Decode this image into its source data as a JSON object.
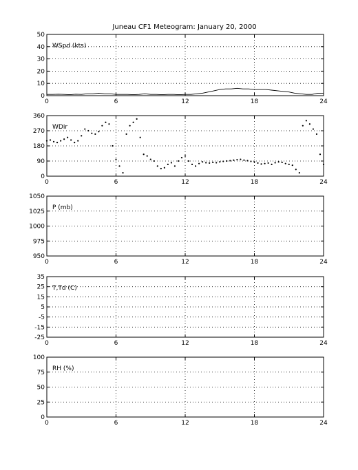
{
  "chart_data": {
    "type": "line",
    "title": "Juneau CF1 Meteogram:   January 20, 2000",
    "panels": [
      {
        "label": "WSpd (kts)",
        "xlim": [
          0,
          24
        ],
        "xticks": [
          0,
          6,
          12,
          18,
          24
        ],
        "ylim": [
          0,
          50
        ],
        "yticks": [
          0,
          10,
          20,
          30,
          40,
          50
        ],
        "grid": true,
        "style": "line",
        "series": [
          {
            "x": [
              0,
              0.5,
              1,
              1.5,
              2,
              2.5,
              3,
              3.5,
              4,
              4.5,
              5,
              5.5,
              6,
              6.5,
              7,
              7.5,
              8,
              8.5,
              9,
              9.5,
              10,
              10.5,
              11,
              11.5,
              12,
              12.5,
              13,
              13.5,
              14,
              14.5,
              15,
              15.5,
              16,
              16.5,
              17,
              17.5,
              18,
              18.5,
              19,
              19.5,
              20,
              20.5,
              21,
              21.5,
              22,
              22.5,
              23,
              23.5,
              24
            ],
            "values": [
              1,
              1,
              1.2,
              1,
              0.8,
              1.2,
              1,
              1.5,
              1.5,
              2,
              1.5,
              1.5,
              1,
              1,
              1,
              0.8,
              1,
              1.5,
              1,
              1,
              0.8,
              1,
              1,
              0.8,
              1,
              1,
              1.5,
              2,
              3,
              4,
              5,
              5.5,
              5.5,
              6,
              5.5,
              5.5,
              5,
              5,
              5,
              4.5,
              4,
              3.5,
              3,
              2,
              1.5,
              1,
              1,
              2,
              2
            ]
          }
        ]
      },
      {
        "label": "WDir",
        "xlim": [
          0,
          24
        ],
        "xticks": [
          0,
          6,
          12,
          18,
          24
        ],
        "ylim": [
          0,
          360
        ],
        "yticks": [
          0,
          90,
          180,
          270,
          360
        ],
        "grid": true,
        "style": "dots",
        "series": [
          {
            "x": [
              0,
              0.3,
              0.6,
              0.9,
              1.2,
              1.5,
              1.8,
              2.1,
              2.4,
              2.7,
              3.0,
              3.3,
              3.6,
              3.9,
              4.2,
              4.5,
              4.8,
              5.1,
              5.4,
              5.7,
              6.0,
              6.3,
              6.6,
              6.9,
              7.2,
              7.5,
              7.8,
              8.1,
              8.4,
              8.7,
              9.0,
              9.3,
              9.6,
              9.9,
              10.2,
              10.5,
              10.8,
              11.1,
              11.4,
              11.7,
              12.0,
              12.3,
              12.6,
              12.9,
              13.2,
              13.5,
              13.8,
              14.1,
              14.4,
              14.7,
              15.0,
              15.3,
              15.6,
              15.9,
              16.2,
              16.5,
              16.8,
              17.1,
              17.4,
              17.7,
              18.0,
              18.3,
              18.6,
              18.9,
              19.2,
              19.5,
              19.8,
              20.1,
              20.4,
              20.7,
              21.0,
              21.3,
              21.6,
              21.9,
              22.2,
              22.5,
              22.8,
              23.1,
              23.4,
              23.7,
              24
            ],
            "values": [
              210,
              215,
              205,
              200,
              210,
              220,
              230,
              215,
              200,
              210,
              240,
              280,
              270,
              255,
              250,
              265,
              300,
              320,
              310,
              180,
              100,
              60,
              20,
              250,
              300,
              320,
              340,
              230,
              130,
              120,
              100,
              90,
              60,
              45,
              50,
              70,
              80,
              60,
              90,
              110,
              120,
              90,
              70,
              60,
              75,
              85,
              80,
              78,
              82,
              80,
              85,
              88,
              90,
              92,
              95,
              98,
              100,
              95,
              92,
              88,
              85,
              78,
              72,
              75,
              78,
              70,
              80,
              85,
              82,
              75,
              70,
              65,
              40,
              20,
              300,
              330,
              310,
              280,
              250,
              130,
              70
            ]
          }
        ]
      },
      {
        "label": "P (mb)",
        "xlim": [
          0,
          24
        ],
        "xticks": [
          0,
          6,
          12,
          18,
          24
        ],
        "ylim": [
          950,
          1050
        ],
        "yticks": [
          950,
          975,
          1000,
          1025,
          1050
        ],
        "grid": true,
        "style": "line",
        "series": []
      },
      {
        "label": "T,Td (C)",
        "xlim": [
          0,
          24
        ],
        "xticks": [
          0,
          6,
          12,
          18,
          24
        ],
        "ylim": [
          -25,
          35
        ],
        "yticks": [
          -25,
          -15,
          -5,
          5,
          15,
          25,
          35
        ],
        "grid": true,
        "style": "line",
        "series": []
      },
      {
        "label": "RH (%)",
        "xlim": [
          0,
          24
        ],
        "xticks": [
          0,
          6,
          12,
          18,
          24
        ],
        "ylim": [
          0,
          100
        ],
        "yticks": [
          0,
          25,
          50,
          75,
          100
        ],
        "grid": true,
        "style": "line",
        "series": []
      }
    ]
  }
}
